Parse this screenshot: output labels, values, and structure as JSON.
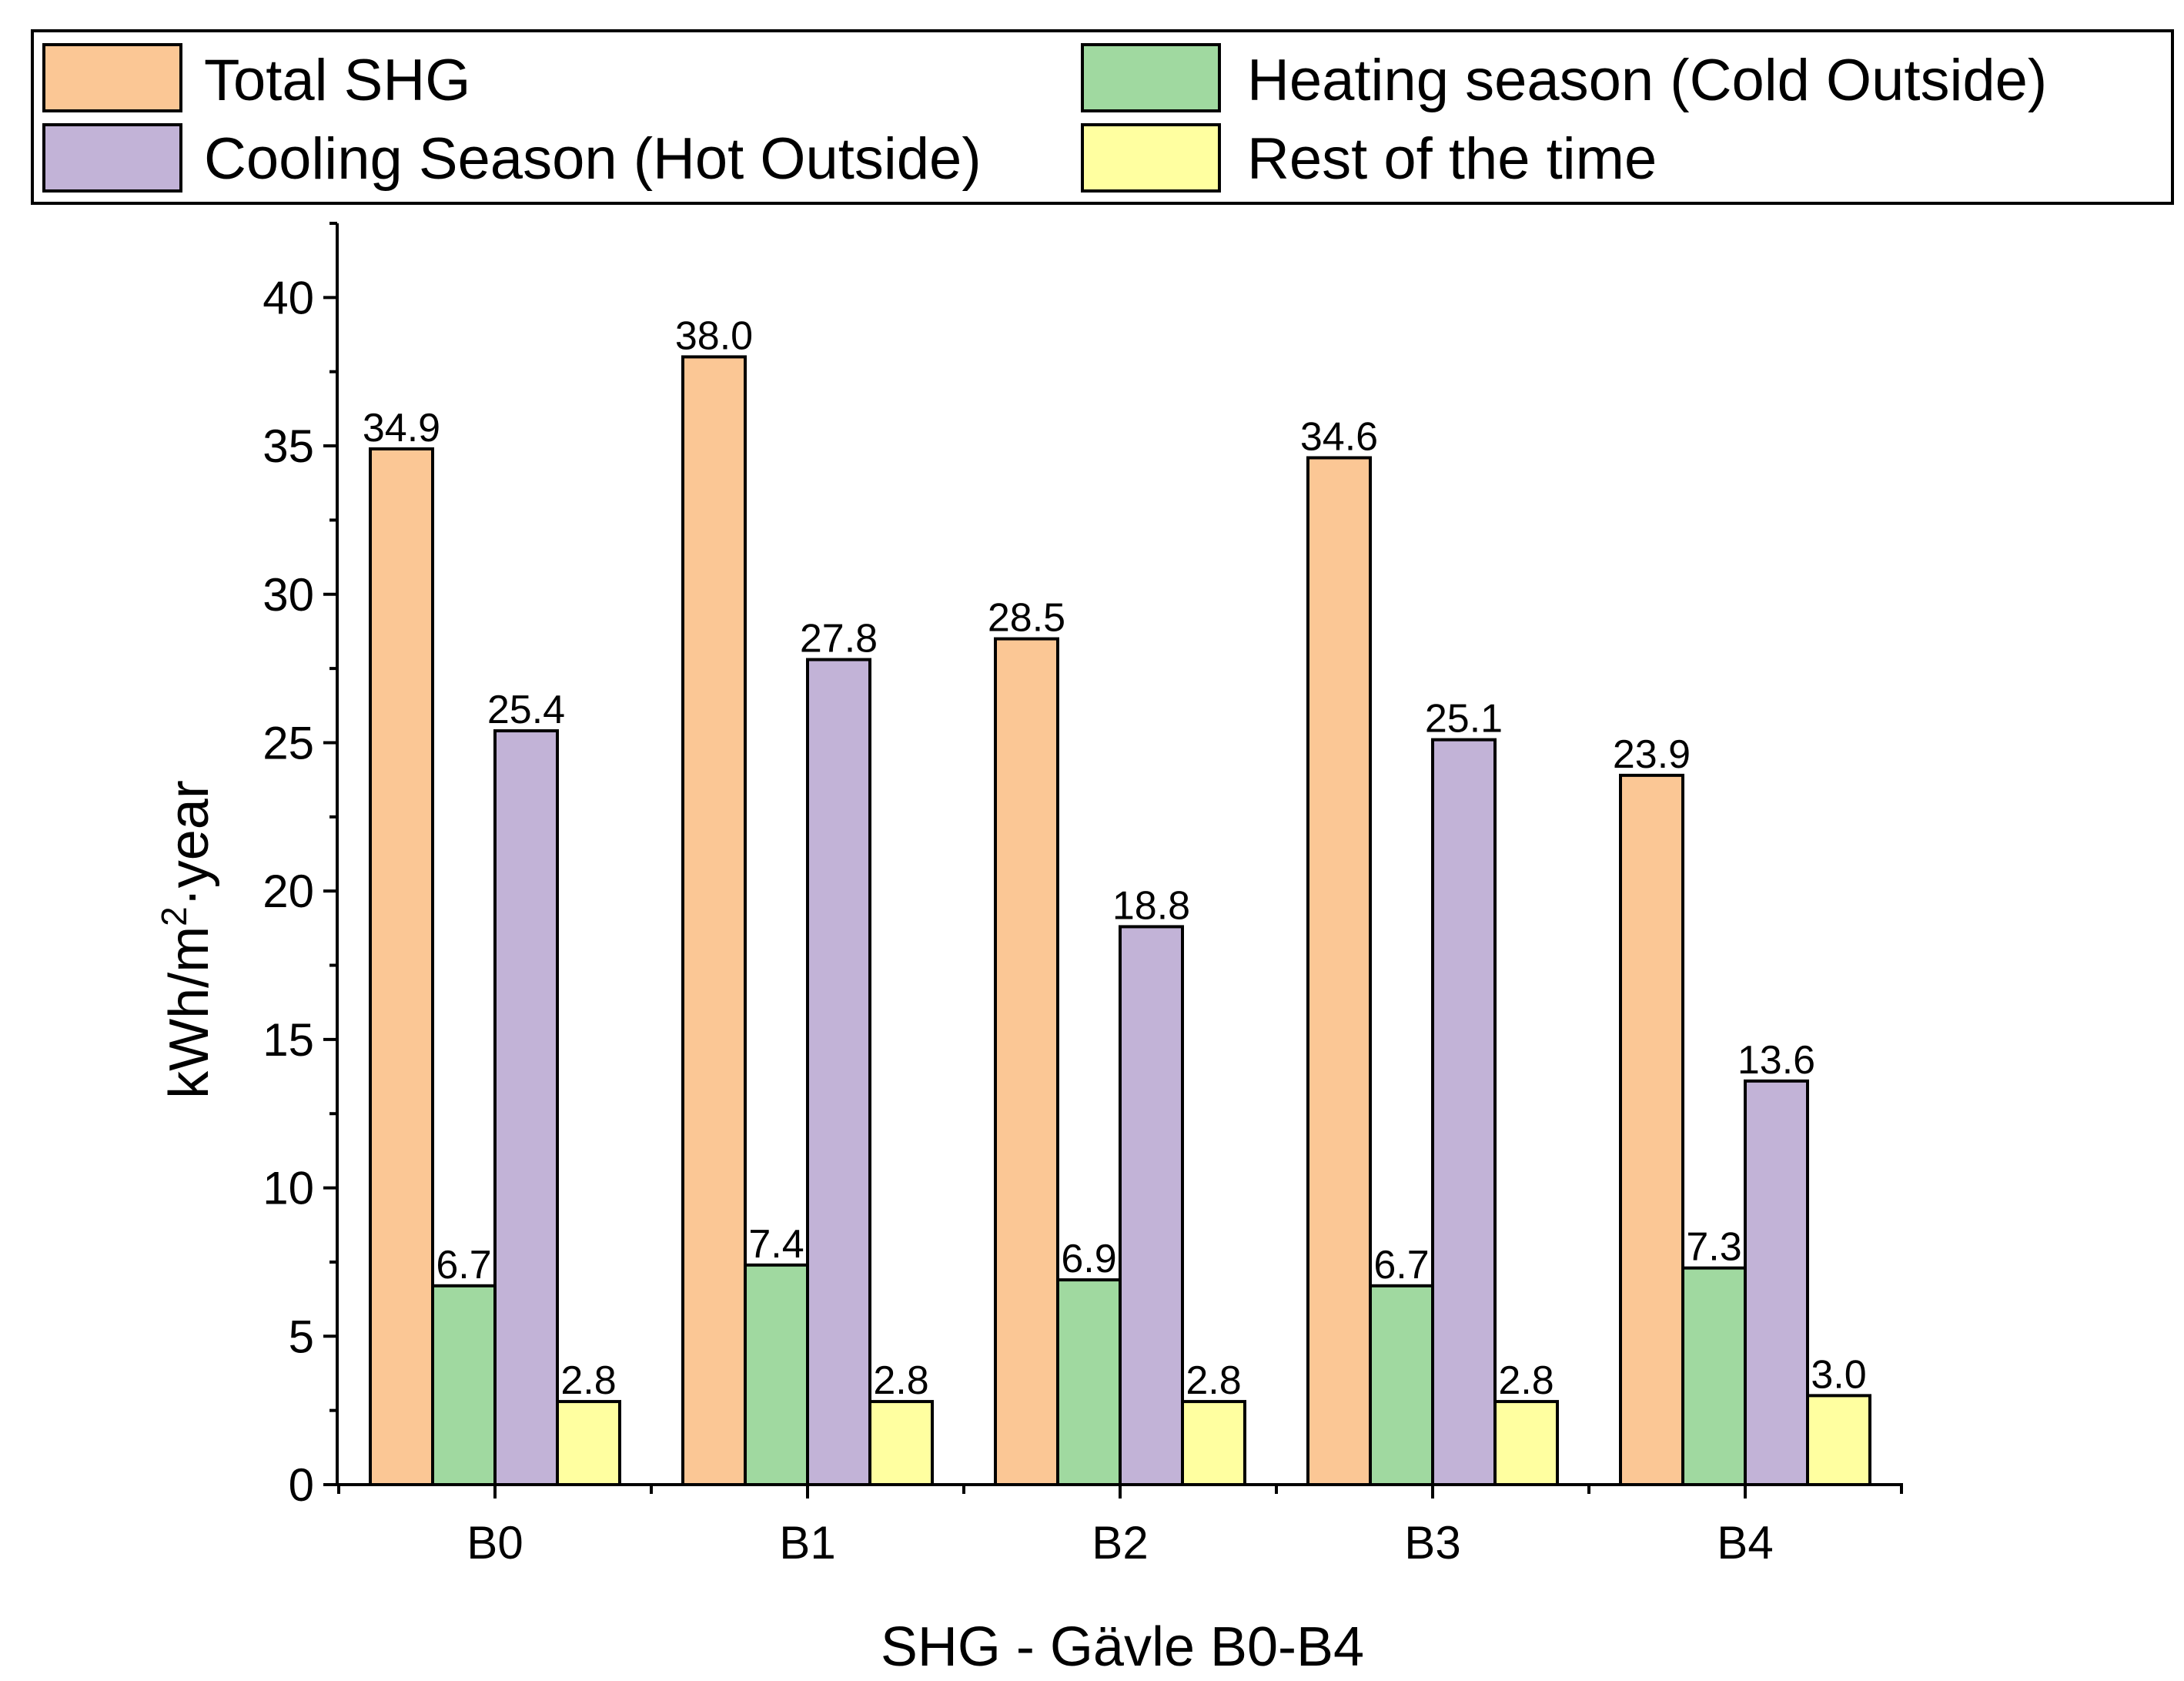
{
  "chart_data": {
    "type": "bar",
    "title": "",
    "xlabel": "SHG - Gävle B0-B4",
    "ylabel_prefix": "kWh/m",
    "ylabel_sup": "2",
    "ylabel_suffix": "·year",
    "ylim": [
      0,
      42.5
    ],
    "yticks": [
      0,
      5,
      10,
      15,
      20,
      25,
      30,
      35,
      40
    ],
    "categories": [
      "B0",
      "B1",
      "B2",
      "B3",
      "B4"
    ],
    "legend_position": "top",
    "series": [
      {
        "name": "Total SHG",
        "color": "#FBC795",
        "values": [
          34.9,
          38.0,
          28.5,
          34.6,
          23.9
        ]
      },
      {
        "name": "Heating season (Cold Outside)",
        "color": "#A0D9A0",
        "values": [
          6.7,
          7.4,
          6.9,
          6.7,
          7.3
        ]
      },
      {
        "name": "Cooling Season (Hot Outside)",
        "color": "#C2B3D7",
        "values": [
          25.4,
          27.8,
          18.8,
          25.1,
          13.6
        ]
      },
      {
        "name": "Rest of the time",
        "color": "#FFFFA0",
        "values": [
          2.8,
          2.8,
          2.8,
          2.8,
          3.0
        ]
      }
    ]
  }
}
